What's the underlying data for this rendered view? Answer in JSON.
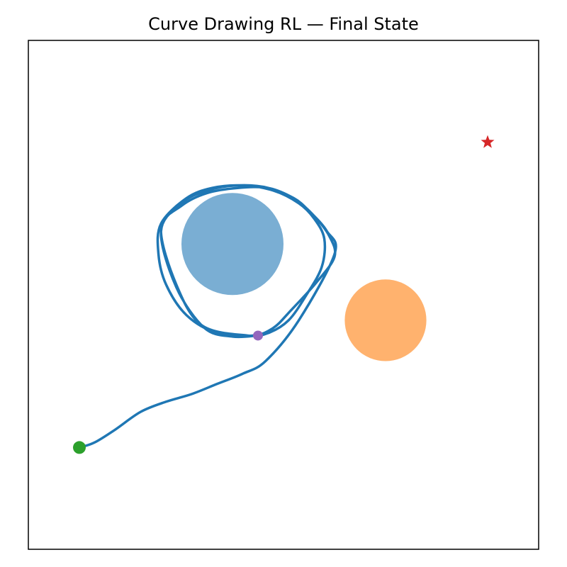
{
  "chart_data": {
    "type": "scatter",
    "title": "Curve Drawing RL — Final State",
    "xlabel": "",
    "ylabel": "",
    "xlim": [
      0,
      1
    ],
    "ylim": [
      0,
      1
    ],
    "grid": false,
    "axis_ticks": false,
    "obstacles": [
      {
        "center": [
          0.4,
          0.6
        ],
        "radius": 0.1,
        "color": "#7aaed3"
      },
      {
        "center": [
          0.7,
          0.45
        ],
        "radius": 0.08,
        "color": "#ffb26e"
      }
    ],
    "start_marker": {
      "x": 0.1,
      "y": 0.2,
      "color": "#2ca02c",
      "shape": "circle"
    },
    "end_marker": {
      "x": 0.45,
      "y": 0.42,
      "color": "#9467bd",
      "shape": "circle"
    },
    "target_marker": {
      "x": 0.9,
      "y": 0.8,
      "color": "#d62728",
      "shape": "star"
    },
    "path": {
      "color": "#1f77b4",
      "points": [
        [
          0.1,
          0.2
        ],
        [
          0.13,
          0.21
        ],
        [
          0.17,
          0.235
        ],
        [
          0.22,
          0.27
        ],
        [
          0.27,
          0.29
        ],
        [
          0.32,
          0.305
        ],
        [
          0.37,
          0.325
        ],
        [
          0.42,
          0.345
        ],
        [
          0.465,
          0.37
        ],
        [
          0.53,
          0.45
        ],
        [
          0.6,
          0.58
        ],
        [
          0.585,
          0.625
        ],
        [
          0.55,
          0.665
        ],
        [
          0.52,
          0.69
        ],
        [
          0.47,
          0.71
        ],
        [
          0.41,
          0.71
        ],
        [
          0.35,
          0.7
        ],
        [
          0.3,
          0.675
        ],
        [
          0.26,
          0.63
        ],
        [
          0.29,
          0.52
        ],
        [
          0.34,
          0.44
        ],
        [
          0.43,
          0.42
        ],
        [
          0.47,
          0.425
        ],
        [
          0.51,
          0.45
        ],
        [
          0.545,
          0.5
        ],
        [
          0.575,
          0.555
        ],
        [
          0.58,
          0.61
        ],
        [
          0.56,
          0.65
        ],
        [
          0.53,
          0.68
        ],
        [
          0.48,
          0.705
        ],
        [
          0.42,
          0.715
        ],
        [
          0.36,
          0.71
        ],
        [
          0.31,
          0.69
        ],
        [
          0.26,
          0.64
        ],
        [
          0.255,
          0.58
        ],
        [
          0.27,
          0.52
        ],
        [
          0.31,
          0.46
        ],
        [
          0.37,
          0.425
        ],
        [
          0.44,
          0.42
        ],
        [
          0.48,
          0.435
        ],
        [
          0.515,
          0.47
        ],
        [
          0.565,
          0.525
        ],
        [
          0.6,
          0.575
        ],
        [
          0.59,
          0.615
        ],
        [
          0.56,
          0.655
        ],
        [
          0.525,
          0.685
        ],
        [
          0.47,
          0.71
        ],
        [
          0.41,
          0.715
        ],
        [
          0.35,
          0.705
        ],
        [
          0.3,
          0.68
        ],
        [
          0.26,
          0.625
        ],
        [
          0.29,
          0.515
        ],
        [
          0.345,
          0.435
        ],
        [
          0.4,
          0.418
        ],
        [
          0.45,
          0.42
        ]
      ]
    }
  }
}
